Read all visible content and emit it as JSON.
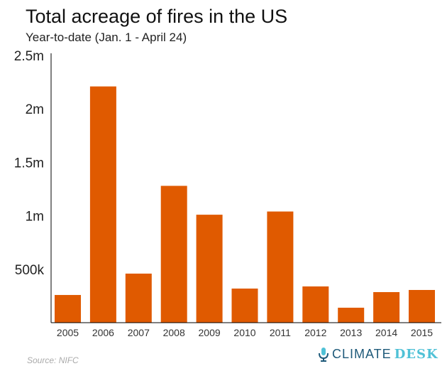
{
  "chart_data": {
    "type": "bar",
    "title": "Total acreage of fires in the US",
    "subtitle": "Year-to-date (Jan. 1 - April 24)",
    "categories": [
      "2005",
      "2006",
      "2007",
      "2008",
      "2009",
      "2010",
      "2011",
      "2012",
      "2013",
      "2014",
      "2015"
    ],
    "values": [
      259000,
      2210000,
      459000,
      1280000,
      1010000,
      319000,
      1040000,
      339000,
      140000,
      286000,
      306000
    ],
    "ylim": [
      0,
      2500000
    ],
    "yticks": [
      500000,
      1000000,
      1500000,
      2000000,
      2500000
    ],
    "ytick_labels": [
      "500k",
      "1m",
      "1.5m",
      "2m",
      "2.5m"
    ],
    "xlabel": "",
    "ylabel": "",
    "grid": false,
    "bar_color": "#e05a00"
  },
  "source": "Source: NIFC",
  "logo": {
    "part1": "CLIMATE",
    "part2": "DESK"
  }
}
